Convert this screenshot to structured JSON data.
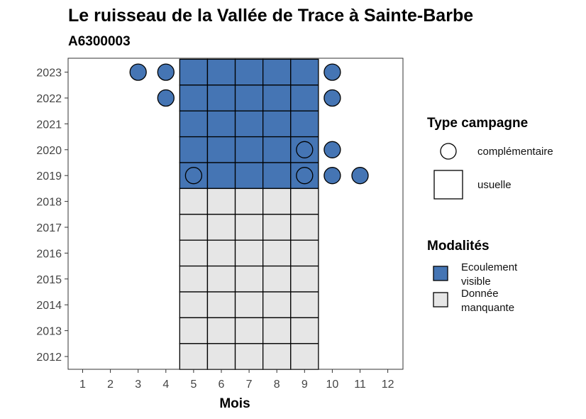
{
  "chart_data": {
    "type": "heatmap",
    "title": "Le ruisseau de la Vallée de Trace à Sainte-Barbe",
    "subtitle": "A6300003",
    "xlabel": "Mois",
    "ylabel": "",
    "x_ticks": [
      1,
      2,
      3,
      4,
      5,
      6,
      7,
      8,
      9,
      10,
      11,
      12
    ],
    "y_ticks": [
      2012,
      2013,
      2014,
      2015,
      2016,
      2017,
      2018,
      2019,
      2020,
      2021,
      2022,
      2023
    ],
    "grid": false,
    "legend_position": "right",
    "colors": {
      "Ecoulement visible": "#4575b4",
      "Donnée manquante": "#e6e6e6"
    },
    "legend_shape": {
      "title": "Type campagne",
      "entries": [
        {
          "label": "complémentaire",
          "shape": "circle"
        },
        {
          "label": "usuelle",
          "shape": "square"
        }
      ]
    },
    "legend_fill": {
      "title": "Modalités",
      "entries": [
        {
          "label_lines": [
            "Ecoulement",
            "visible"
          ],
          "key": "Ecoulement visible"
        },
        {
          "label_lines": [
            "Donnée",
            "manquante"
          ],
          "key": "Donnée manquante"
        }
      ]
    },
    "tiles": [
      {
        "year": 2023,
        "month": 5,
        "modalite": "Ecoulement visible"
      },
      {
        "year": 2023,
        "month": 6,
        "modalite": "Ecoulement visible"
      },
      {
        "year": 2023,
        "month": 7,
        "modalite": "Ecoulement visible"
      },
      {
        "year": 2023,
        "month": 8,
        "modalite": "Ecoulement visible"
      },
      {
        "year": 2023,
        "month": 9,
        "modalite": "Ecoulement visible"
      },
      {
        "year": 2022,
        "month": 5,
        "modalite": "Ecoulement visible"
      },
      {
        "year": 2022,
        "month": 6,
        "modalite": "Ecoulement visible"
      },
      {
        "year": 2022,
        "month": 7,
        "modalite": "Ecoulement visible"
      },
      {
        "year": 2022,
        "month": 8,
        "modalite": "Ecoulement visible"
      },
      {
        "year": 2022,
        "month": 9,
        "modalite": "Ecoulement visible"
      },
      {
        "year": 2021,
        "month": 5,
        "modalite": "Ecoulement visible"
      },
      {
        "year": 2021,
        "month": 6,
        "modalite": "Ecoulement visible"
      },
      {
        "year": 2021,
        "month": 7,
        "modalite": "Ecoulement visible"
      },
      {
        "year": 2021,
        "month": 8,
        "modalite": "Ecoulement visible"
      },
      {
        "year": 2021,
        "month": 9,
        "modalite": "Ecoulement visible"
      },
      {
        "year": 2020,
        "month": 5,
        "modalite": "Ecoulement visible"
      },
      {
        "year": 2020,
        "month": 6,
        "modalite": "Ecoulement visible"
      },
      {
        "year": 2020,
        "month": 7,
        "modalite": "Ecoulement visible"
      },
      {
        "year": 2020,
        "month": 8,
        "modalite": "Ecoulement visible"
      },
      {
        "year": 2020,
        "month": 9,
        "modalite": "Ecoulement visible"
      },
      {
        "year": 2019,
        "month": 5,
        "modalite": "Ecoulement visible"
      },
      {
        "year": 2019,
        "month": 6,
        "modalite": "Ecoulement visible"
      },
      {
        "year": 2019,
        "month": 7,
        "modalite": "Ecoulement visible"
      },
      {
        "year": 2019,
        "month": 8,
        "modalite": "Ecoulement visible"
      },
      {
        "year": 2019,
        "month": 9,
        "modalite": "Ecoulement visible"
      },
      {
        "year": 2018,
        "month": 5,
        "modalite": "Donnée manquante"
      },
      {
        "year": 2018,
        "month": 6,
        "modalite": "Donnée manquante"
      },
      {
        "year": 2018,
        "month": 7,
        "modalite": "Donnée manquante"
      },
      {
        "year": 2018,
        "month": 8,
        "modalite": "Donnée manquante"
      },
      {
        "year": 2018,
        "month": 9,
        "modalite": "Donnée manquante"
      },
      {
        "year": 2017,
        "month": 5,
        "modalite": "Donnée manquante"
      },
      {
        "year": 2017,
        "month": 6,
        "modalite": "Donnée manquante"
      },
      {
        "year": 2017,
        "month": 7,
        "modalite": "Donnée manquante"
      },
      {
        "year": 2017,
        "month": 8,
        "modalite": "Donnée manquante"
      },
      {
        "year": 2017,
        "month": 9,
        "modalite": "Donnée manquante"
      },
      {
        "year": 2016,
        "month": 5,
        "modalite": "Donnée manquante"
      },
      {
        "year": 2016,
        "month": 6,
        "modalite": "Donnée manquante"
      },
      {
        "year": 2016,
        "month": 7,
        "modalite": "Donnée manquante"
      },
      {
        "year": 2016,
        "month": 8,
        "modalite": "Donnée manquante"
      },
      {
        "year": 2016,
        "month": 9,
        "modalite": "Donnée manquante"
      },
      {
        "year": 2015,
        "month": 5,
        "modalite": "Donnée manquante"
      },
      {
        "year": 2015,
        "month": 6,
        "modalite": "Donnée manquante"
      },
      {
        "year": 2015,
        "month": 7,
        "modalite": "Donnée manquante"
      },
      {
        "year": 2015,
        "month": 8,
        "modalite": "Donnée manquante"
      },
      {
        "year": 2015,
        "month": 9,
        "modalite": "Donnée manquante"
      },
      {
        "year": 2014,
        "month": 5,
        "modalite": "Donnée manquante"
      },
      {
        "year": 2014,
        "month": 6,
        "modalite": "Donnée manquante"
      },
      {
        "year": 2014,
        "month": 7,
        "modalite": "Donnée manquante"
      },
      {
        "year": 2014,
        "month": 8,
        "modalite": "Donnée manquante"
      },
      {
        "year": 2014,
        "month": 9,
        "modalite": "Donnée manquante"
      },
      {
        "year": 2013,
        "month": 5,
        "modalite": "Donnée manquante"
      },
      {
        "year": 2013,
        "month": 6,
        "modalite": "Donnée manquante"
      },
      {
        "year": 2013,
        "month": 7,
        "modalite": "Donnée manquante"
      },
      {
        "year": 2013,
        "month": 8,
        "modalite": "Donnée manquante"
      },
      {
        "year": 2013,
        "month": 9,
        "modalite": "Donnée manquante"
      },
      {
        "year": 2012,
        "month": 5,
        "modalite": "Donnée manquante"
      },
      {
        "year": 2012,
        "month": 6,
        "modalite": "Donnée manquante"
      },
      {
        "year": 2012,
        "month": 7,
        "modalite": "Donnée manquante"
      },
      {
        "year": 2012,
        "month": 8,
        "modalite": "Donnée manquante"
      },
      {
        "year": 2012,
        "month": 9,
        "modalite": "Donnée manquante"
      }
    ],
    "points": [
      {
        "year": 2023,
        "month": 3,
        "modalite": "Ecoulement visible"
      },
      {
        "year": 2023,
        "month": 4,
        "modalite": "Ecoulement visible"
      },
      {
        "year": 2023,
        "month": 10,
        "modalite": "Ecoulement visible"
      },
      {
        "year": 2022,
        "month": 4,
        "modalite": "Ecoulement visible"
      },
      {
        "year": 2022,
        "month": 10,
        "modalite": "Ecoulement visible"
      },
      {
        "year": 2020,
        "month": 9,
        "modalite": "Ecoulement visible"
      },
      {
        "year": 2020,
        "month": 10,
        "modalite": "Ecoulement visible"
      },
      {
        "year": 2019,
        "month": 5,
        "modalite": "Ecoulement visible"
      },
      {
        "year": 2019,
        "month": 9,
        "modalite": "Ecoulement visible"
      },
      {
        "year": 2019,
        "month": 10,
        "modalite": "Ecoulement visible"
      },
      {
        "year": 2019,
        "month": 11,
        "modalite": "Ecoulement visible"
      }
    ]
  }
}
